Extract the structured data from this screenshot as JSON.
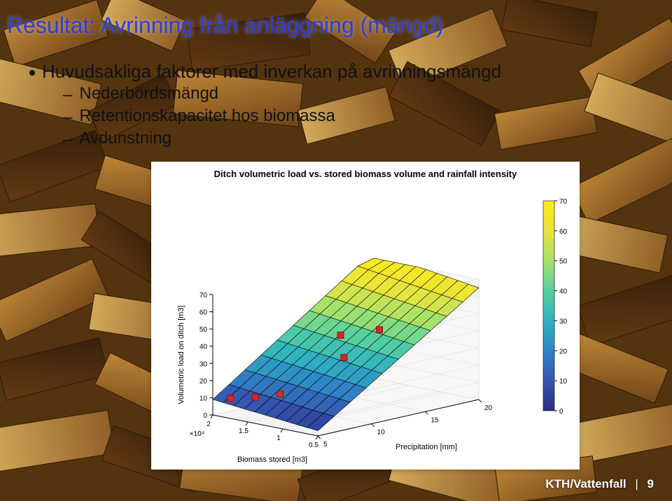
{
  "slide": {
    "title": "Resultat: Avrinning från anläggning (mängd)",
    "bullet_main": "Huvudsakliga faktorer med inverkan på avrinningsmängd",
    "sub_bullets": [
      "Nederbördsmängd",
      "Retentionskapacitet hos biomassa",
      "Avdunstning"
    ]
  },
  "chart": {
    "type": "surface-3d",
    "title": "Ditch volumetric load vs. stored biomass volume and rainfall intensity",
    "z_axis": {
      "label": "Volumetric load on ditch [m3]",
      "ticks": [
        0,
        10,
        20,
        30,
        40,
        50,
        60,
        70
      ],
      "lim": [
        0,
        70
      ],
      "label_fontsize": 11
    },
    "x_axis": {
      "label": "Biomass stored [m3]",
      "ticks": [
        0.5,
        1,
        1.5,
        2
      ],
      "lim": [
        0.5,
        2
      ],
      "scale_note": "×10⁴",
      "label_fontsize": 11
    },
    "y_axis": {
      "label": "Precipitation [mm]",
      "ticks": [
        5,
        10,
        15,
        20
      ],
      "lim": [
        5,
        20
      ],
      "label_fontsize": 11
    },
    "colorbar": {
      "ticks": [
        0,
        10,
        20,
        30,
        40,
        50,
        60,
        70
      ],
      "lim": [
        0,
        70
      ],
      "colors_low_to_high": [
        "#2c2f86",
        "#3555b0",
        "#2f84c6",
        "#30b3c0",
        "#55d0a0",
        "#a5e26a",
        "#e8e33e",
        "#faea1a"
      ]
    },
    "surface": {
      "description": "z rises ~linearly with precipitation, weak positive with biomass",
      "grid_color": "#000000",
      "grid_width": 0.6,
      "sample_points_along_precip_at_biomass_2e4": [
        {
          "precip": 5,
          "z": 11
        },
        {
          "precip": 10,
          "z": 30
        },
        {
          "precip": 15,
          "z": 50
        },
        {
          "precip": 20,
          "z": 70
        }
      ],
      "sample_points_along_precip_at_biomass_0_5e4": [
        {
          "precip": 5,
          "z": 3
        },
        {
          "precip": 10,
          "z": 20
        },
        {
          "precip": 15,
          "z": 42
        },
        {
          "precip": 20,
          "z": 63
        }
      ]
    },
    "markers": {
      "style": "square",
      "color": "#d62728",
      "size": 9,
      "edge": "#8a1515",
      "points_xyz": [
        {
          "biomass_e4": 1.9,
          "precip": 6,
          "z": 9
        },
        {
          "biomass_e4": 1.7,
          "precip": 7,
          "z": 10
        },
        {
          "biomass_e4": 1.5,
          "precip": 8,
          "z": 12
        },
        {
          "biomass_e4": 1.2,
          "precip": 12,
          "z": 30
        },
        {
          "biomass_e4": 1.4,
          "precip": 13,
          "z": 40
        },
        {
          "biomass_e4": 1.0,
          "precip": 14,
          "z": 45
        }
      ]
    },
    "background_color": "#ffffff",
    "axis_color": "#000000",
    "tick_fontsize": 10
  },
  "footer": {
    "org": "KTH/Vattenfall",
    "page": "9"
  },
  "background": {
    "description": "wood-chip photo",
    "palette": [
      "#4a2a0e",
      "#7a4a1b",
      "#b07a2a",
      "#d6a94a",
      "#e8c978",
      "#2e1a08"
    ]
  }
}
